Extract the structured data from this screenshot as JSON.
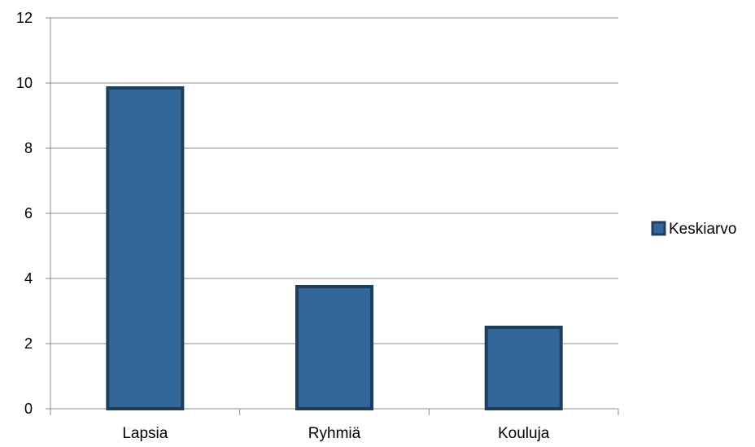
{
  "chart_data": {
    "type": "bar",
    "categories": [
      "Lapsia",
      "Ryhmiä",
      "Kouluja"
    ],
    "series": [
      {
        "name": "Keskiarvo",
        "values": [
          9.85,
          3.75,
          2.5
        ]
      }
    ],
    "ylim": [
      0,
      12
    ],
    "yticks": [
      "0",
      "2",
      "4",
      "6",
      "8",
      "10",
      "12"
    ],
    "grid": true,
    "legend_position": "right",
    "colors": {
      "bar_fill": "#336699",
      "bar_stroke": "#1f3d5c",
      "grid": "#8c8c8c",
      "axis": "#8c8c8c"
    }
  }
}
